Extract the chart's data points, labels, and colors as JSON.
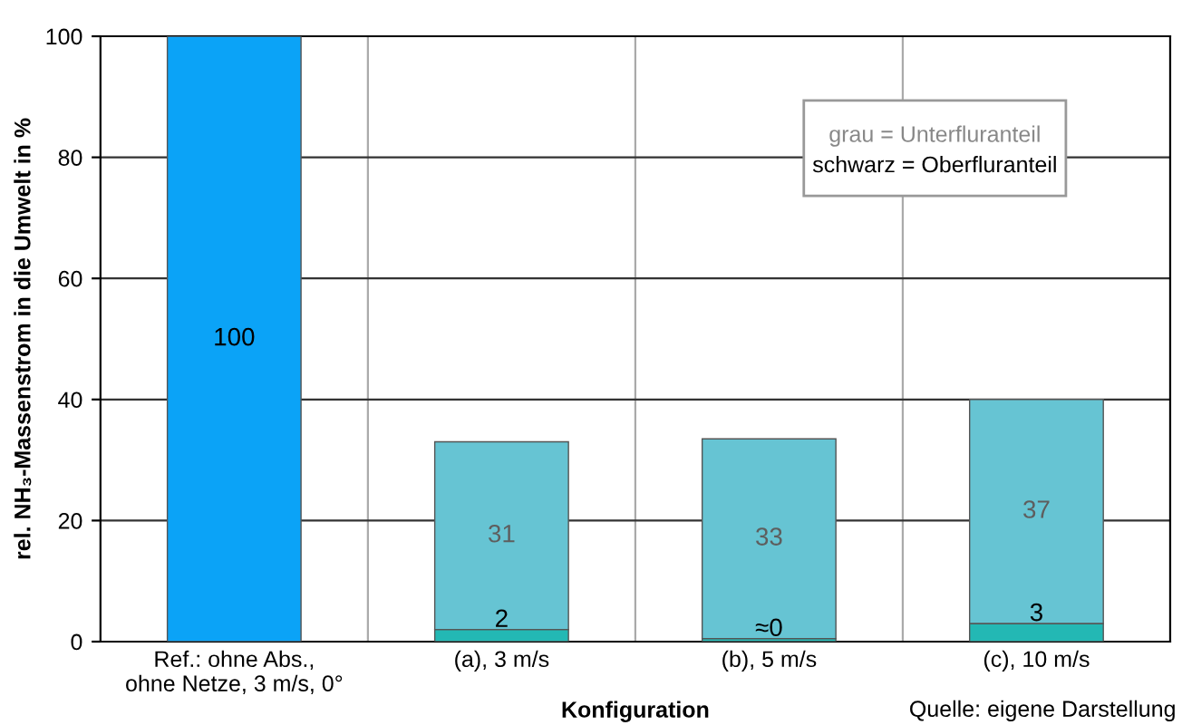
{
  "chart_data": {
    "type": "bar",
    "stacked": true,
    "categories": [
      "Ref.: ohne Abs.,\nohne Netze, 3 m/s, 0°",
      "(a), 3 m/s",
      "(b), 5 m/s",
      "(c), 10 m/s"
    ],
    "series": [
      {
        "color": "#0ba3f7",
        "values": [
          100,
          null,
          null,
          null
        ],
        "value_labels": [
          "100",
          null,
          null,
          null
        ]
      },
      {
        "color": "#23b8b4",
        "values": [
          null,
          2,
          0.5,
          3
        ],
        "value_labels": [
          null,
          "2",
          "≈0",
          "3"
        ]
      },
      {
        "color": "#66c4d3",
        "values": [
          null,
          31,
          33,
          37
        ],
        "value_labels": [
          null,
          "31",
          "33",
          "37"
        ]
      }
    ],
    "xlabel": "Konfiguration",
    "ylabel": "rel. NH₃-Massenstrom in die Umwelt in %",
    "ylim": [
      0,
      100
    ],
    "yticks": [
      0,
      20,
      40,
      60,
      80,
      100
    ],
    "grid": true,
    "legend": false,
    "annotations": [
      "grau = Unterfluranteil",
      "schwarz = Oberfluranteil",
      "Quelle: eigene Darstellung"
    ]
  }
}
